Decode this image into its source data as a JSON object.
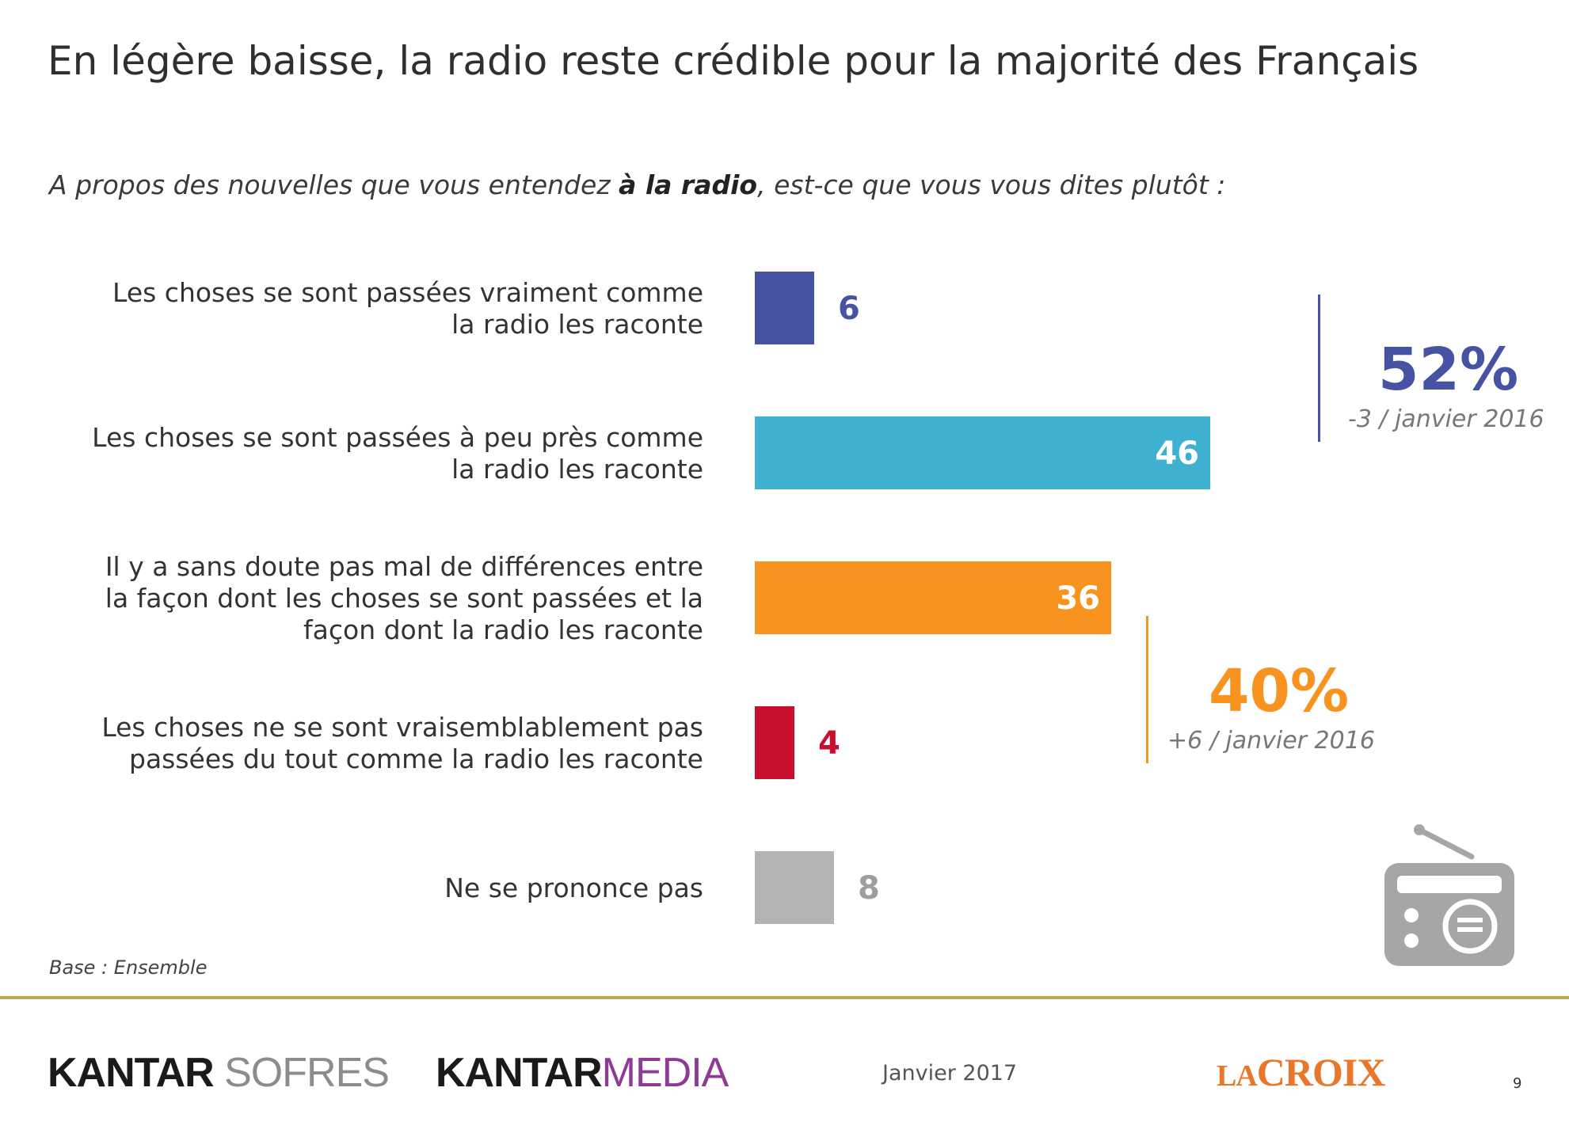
{
  "title": "En légère baisse, la radio reste crédible pour la majorité des Français",
  "question": {
    "before": "A propos des nouvelles que vous entendez ",
    "bold": "à la radio",
    "after": ", est-ce que vous vous dites plutôt :"
  },
  "chart_data": {
    "type": "bar",
    "orientation": "horizontal",
    "categories": [
      [
        "Les choses se sont passées vraiment comme",
        "la radio les raconte"
      ],
      [
        "Les choses se sont passées à peu près comme",
        "la radio les raconte"
      ],
      [
        "Il y a sans doute pas mal de différences entre",
        "la façon dont les choses se sont passées et la",
        "façon dont la radio les raconte"
      ],
      [
        "Les choses ne se sont vraisemblablement pas",
        "passées du tout comme la radio les raconte"
      ],
      [
        "Ne se prononce pas"
      ]
    ],
    "values": [
      6,
      46,
      36,
      4,
      8
    ],
    "colors": [
      "#4553a2",
      "#3fb1d0",
      "#f7931e",
      "#c8102e",
      "#b3b3b3"
    ],
    "value_label_position": [
      "outside",
      "inside",
      "inside",
      "outside",
      "outside"
    ],
    "xlim": [
      0,
      100
    ],
    "grid": false,
    "legend": "none"
  },
  "groups": [
    {
      "pct": "52%",
      "delta": "-3 / janvier 2016",
      "color": "#4553a2"
    },
    {
      "pct": "40%",
      "delta": "+6 / janvier 2016",
      "color": "#f7931e"
    }
  ],
  "base_note": "Base : Ensemble",
  "footer": {
    "logo1_bold": "KANTAR",
    "logo1_light": "SOFRES",
    "logo2_bold": "KANTAR",
    "logo2_colored": "MEDIA",
    "logo2_color": "#8e3a96",
    "date": "Janvier 2017",
    "lacroix_small": "LA",
    "lacroix_big": "CROIX",
    "page": "9"
  },
  "icons": [
    "radio-icon"
  ]
}
